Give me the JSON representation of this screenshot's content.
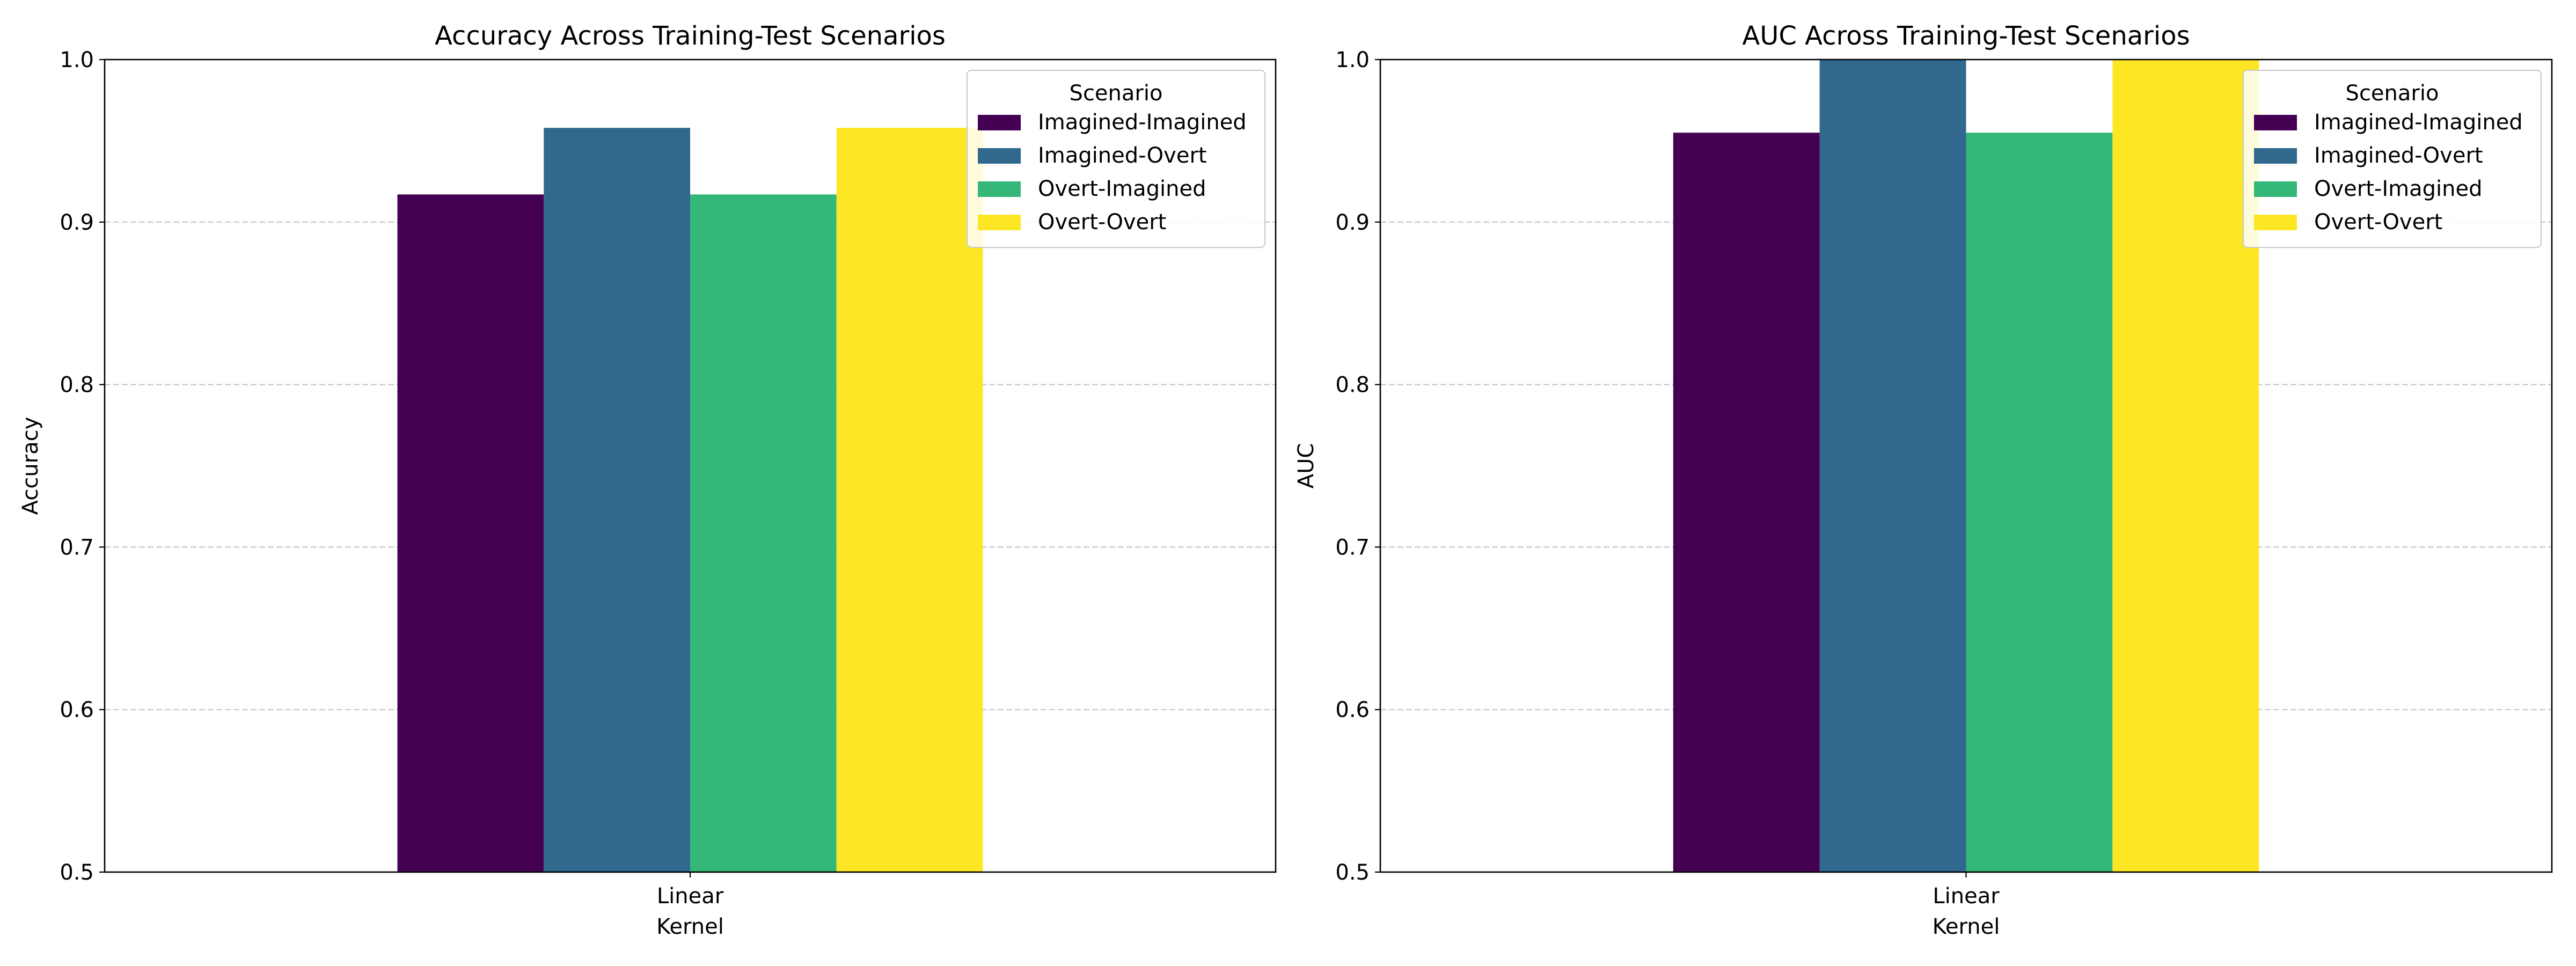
{
  "chart_data": [
    {
      "type": "bar",
      "title": "Accuracy Across Training-Test Scenarios",
      "xlabel": "Kernel",
      "ylabel": "Accuracy",
      "categories": [
        "Linear"
      ],
      "ylim": [
        0.5,
        1.0
      ],
      "yticks": [
        "0.5",
        "0.6",
        "0.7",
        "0.8",
        "0.9",
        "1.0"
      ],
      "grid": "y-dashed",
      "legend_title": "Scenario",
      "legend_position": "top-right",
      "series": [
        {
          "name": "Imagined-Imagined",
          "values": [
            0.917
          ],
          "color": "#440154"
        },
        {
          "name": "Imagined-Overt",
          "values": [
            0.958
          ],
          "color": "#31688e"
        },
        {
          "name": "Overt-Imagined",
          "values": [
            0.917
          ],
          "color": "#35b779"
        },
        {
          "name": "Overt-Overt",
          "values": [
            0.958
          ],
          "color": "#fde725"
        }
      ]
    },
    {
      "type": "bar",
      "title": "AUC Across Training-Test Scenarios",
      "xlabel": "Kernel",
      "ylabel": "AUC",
      "categories": [
        "Linear"
      ],
      "ylim": [
        0.5,
        1.0
      ],
      "yticks": [
        "0.5",
        "0.6",
        "0.7",
        "0.8",
        "0.9",
        "1.0"
      ],
      "grid": "y-dashed",
      "legend_title": "Scenario",
      "legend_position": "top-right",
      "series": [
        {
          "name": "Imagined-Imagined",
          "values": [
            0.955
          ],
          "color": "#440154"
        },
        {
          "name": "Imagined-Overt",
          "values": [
            1.0
          ],
          "color": "#31688e"
        },
        {
          "name": "Overt-Imagined",
          "values": [
            0.955
          ],
          "color": "#35b779"
        },
        {
          "name": "Overt-Overt",
          "values": [
            1.0
          ],
          "color": "#fde725"
        }
      ]
    }
  ]
}
